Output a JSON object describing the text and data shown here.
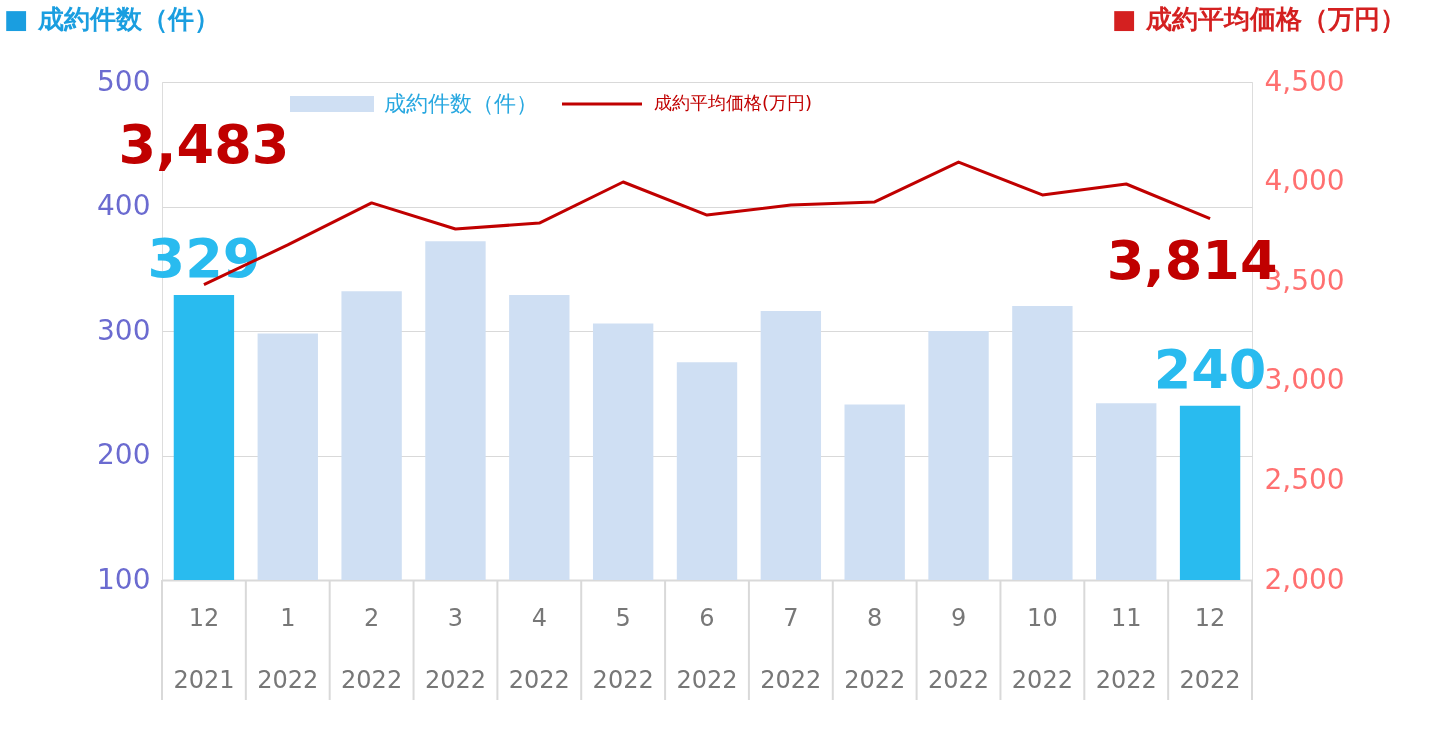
{
  "chart_data": {
    "type": "bar",
    "ylabel": "■ 成約件数（件）",
    "y2label": "■ 成約平均価格（万円）",
    "categories": [
      "12\n2021",
      "1\n2022",
      "2\n2022",
      "3\n2022",
      "4\n2022",
      "5\n2022",
      "6\n2022",
      "7\n2022",
      "8\n2022",
      "9\n2022",
      "10\n2022",
      "11\n2022",
      "12\n2022"
    ],
    "series": [
      {
        "name": "成約件数（件）",
        "color": "#cfdff3",
        "colors": [
          "#29bbef",
          "#cfdff3",
          "#cfdff3",
          "#cfdff3",
          "#cfdff3",
          "#cfdff3",
          "#cfdff3",
          "#cfdff3",
          "#cfdff3",
          "#cfdff3",
          "#cfdff3",
          "#cfdff3",
          "#29bbef"
        ],
        "values": [
          329,
          298,
          332,
          372,
          329,
          306,
          275,
          316,
          241,
          300,
          320,
          242,
          240
        ],
        "value_labels": [
          "329",
          null,
          null,
          null,
          null,
          null,
          null,
          null,
          null,
          null,
          null,
          null,
          "240"
        ]
      },
      {
        "name": "成約平均価格(万円)",
        "type": "line",
        "axis": "y2",
        "color": "#c00000",
        "values": [
          3483,
          3682,
          3893,
          3762,
          3792,
          3998,
          3832,
          3882,
          3898,
          4098,
          3933,
          3988,
          3814
        ],
        "value_labels": [
          "3,483",
          null,
          null,
          null,
          null,
          null,
          null,
          null,
          null,
          null,
          null,
          null,
          "3,814"
        ]
      }
    ],
    "ylim": [
      100,
      500
    ],
    "yticks": [
      100,
      200,
      300,
      400,
      500
    ],
    "y2lim": [
      2000,
      4500
    ],
    "y2ticks": [
      {
        "value": 2000,
        "label": "2,000"
      },
      {
        "value": 2500,
        "label": "2,500"
      },
      {
        "value": 3000,
        "label": "3,000"
      },
      {
        "value": 3500,
        "label": "3,500"
      },
      {
        "value": 4000,
        "label": "4,000"
      },
      {
        "value": 4500,
        "label": "4,500"
      }
    ],
    "grid": "y",
    "legend": "top"
  }
}
